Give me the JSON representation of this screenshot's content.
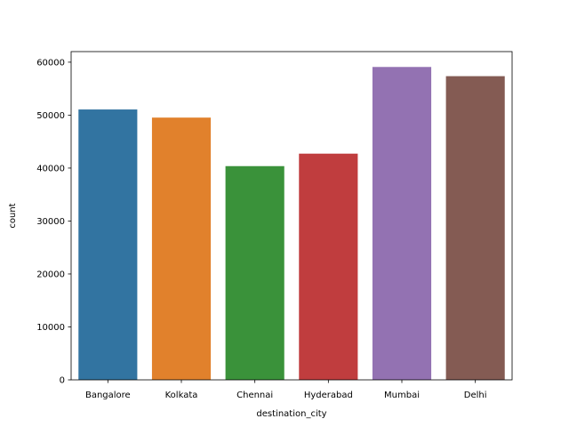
{
  "chart_data": {
    "type": "bar",
    "title": "",
    "xlabel": "destination_city",
    "ylabel": "count",
    "categories": [
      "Bangalore",
      "Kolkata",
      "Chennai",
      "Hyderabad",
      "Mumbai",
      "Delhi"
    ],
    "values": [
      51068,
      49534,
      40368,
      42726,
      59097,
      57360
    ],
    "colors": [
      "#3274a1",
      "#e1812c",
      "#3a923a",
      "#c03d3e",
      "#9372b2",
      "#845b53"
    ],
    "ylim": [
      0,
      62000
    ],
    "yticks": [
      0,
      10000,
      20000,
      30000,
      40000,
      50000,
      60000
    ],
    "ytick_labels": [
      "0",
      "10000",
      "20000",
      "30000",
      "40000",
      "50000",
      "60000"
    ],
    "grid": false,
    "legend": "none"
  }
}
